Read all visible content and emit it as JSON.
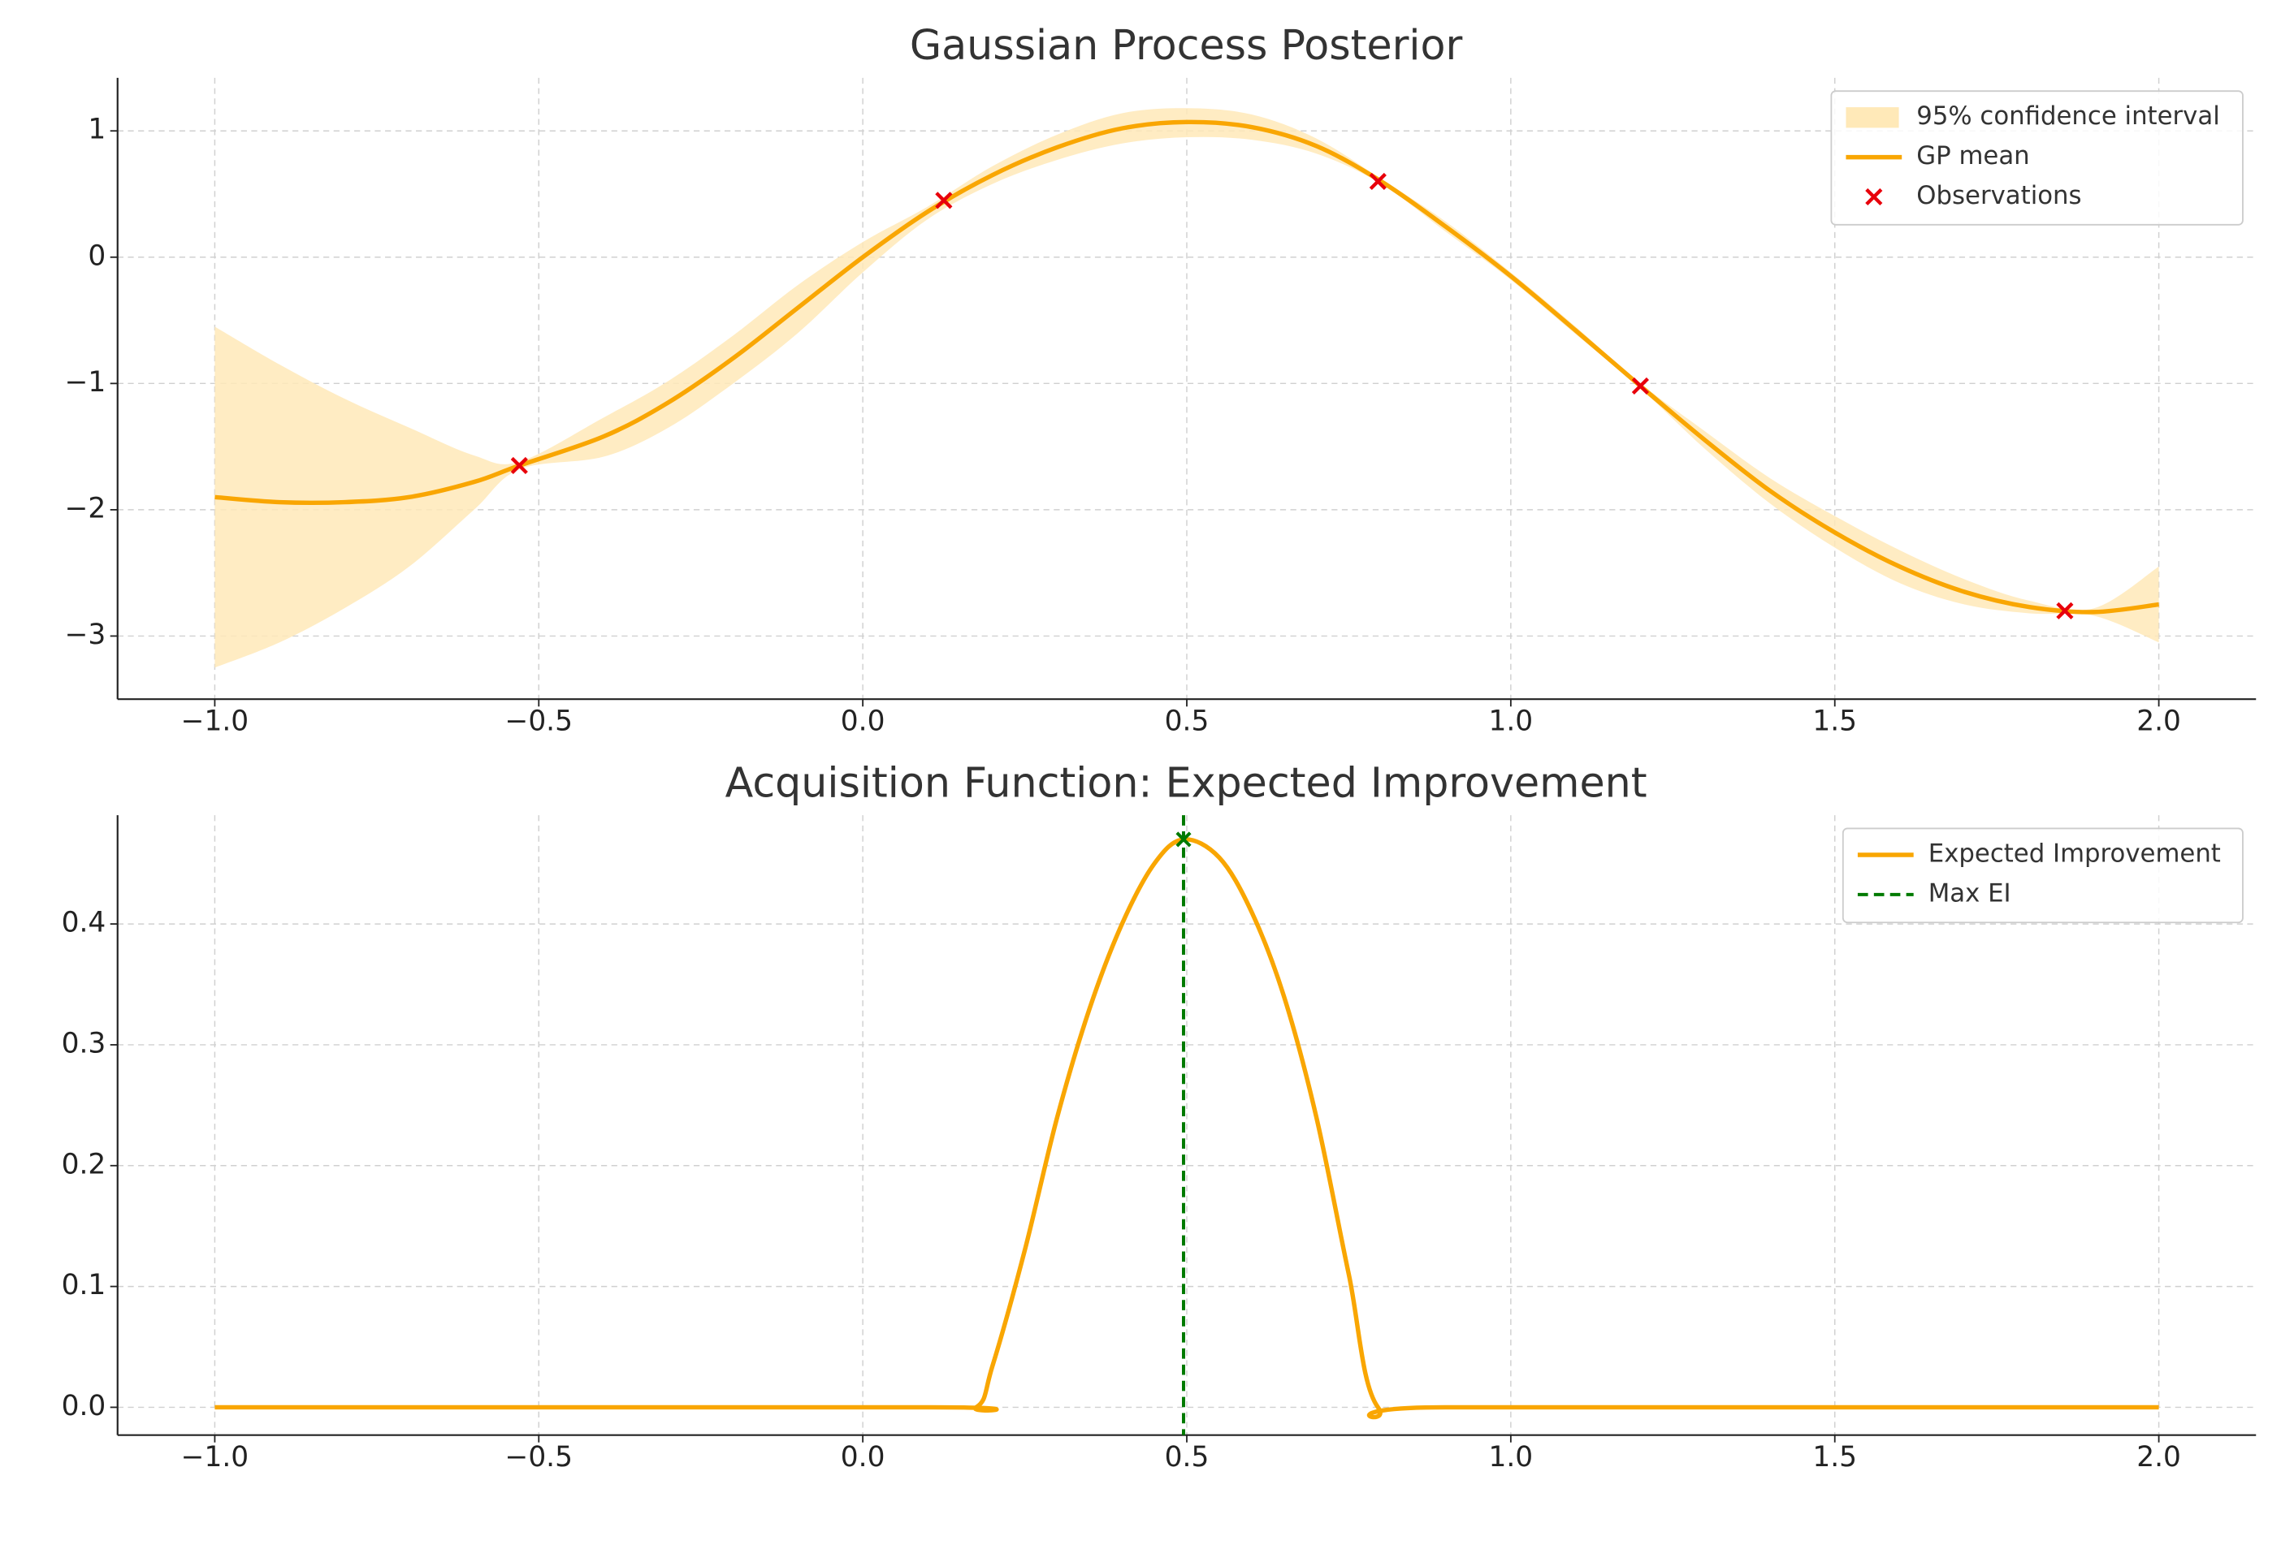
{
  "chart_data": [
    {
      "type": "line",
      "title": "Gaussian Process Posterior",
      "legend": "upper right",
      "grid": true,
      "xlim": [
        -1.15,
        2.15
      ],
      "ylim": [
        -3.5,
        1.42
      ],
      "xticks": [
        {
          "value": -1.0,
          "label": "−1.0"
        },
        {
          "value": -0.5,
          "label": "−0.5"
        },
        {
          "value": 0.0,
          "label": "0.0"
        },
        0.5,
        {
          "value": 1.0,
          "label": "1.0"
        },
        1.5,
        {
          "value": 2.0,
          "label": "2.0"
        }
      ],
      "yticks": [
        {
          "value": -3,
          "label": "−3"
        },
        {
          "value": -2,
          "label": "−2"
        },
        {
          "value": -1,
          "label": "−1"
        },
        0,
        1
      ],
      "x": [
        -1.0,
        -0.9,
        -0.8,
        -0.7,
        -0.6,
        -0.53,
        -0.4,
        -0.3,
        -0.2,
        -0.1,
        0.0,
        0.1,
        0.2,
        0.3,
        0.4,
        0.5,
        0.6,
        0.7,
        0.8,
        0.9,
        1.0,
        1.1,
        1.2,
        1.3,
        1.4,
        1.5,
        1.6,
        1.7,
        1.8,
        1.9,
        2.0
      ],
      "band": {
        "name": "95% confidence interval",
        "color": "#ffe9b8",
        "upper": [
          -0.55,
          -0.85,
          -1.12,
          -1.35,
          -1.57,
          -1.62,
          -1.27,
          -0.98,
          -0.62,
          -0.22,
          0.12,
          0.4,
          0.72,
          0.97,
          1.14,
          1.18,
          1.13,
          0.94,
          0.62,
          0.28,
          -0.12,
          -0.55,
          -1.0,
          -1.38,
          -1.75,
          -2.05,
          -2.32,
          -2.55,
          -2.72,
          -2.78,
          -2.45
        ],
        "lower": [
          -3.25,
          -3.05,
          -2.78,
          -2.45,
          -2.0,
          -1.68,
          -1.58,
          -1.35,
          -1.0,
          -0.6,
          -0.12,
          0.3,
          0.58,
          0.77,
          0.9,
          0.95,
          0.93,
          0.82,
          0.58,
          0.2,
          -0.18,
          -0.61,
          -1.04,
          -1.52,
          -1.95,
          -2.3,
          -2.58,
          -2.75,
          -2.82,
          -2.84,
          -3.05
        ]
      },
      "series": [
        {
          "name": "GP mean",
          "color": "#f9a602",
          "values": [
            -1.9,
            -1.94,
            -1.94,
            -1.9,
            -1.78,
            -1.65,
            -1.42,
            -1.15,
            -0.8,
            -0.4,
            0.0,
            0.36,
            0.65,
            0.87,
            1.02,
            1.07,
            1.03,
            0.88,
            0.6,
            0.24,
            -0.15,
            -0.58,
            -1.02,
            -1.45,
            -1.85,
            -2.18,
            -2.45,
            -2.65,
            -2.77,
            -2.81,
            -2.75
          ]
        }
      ],
      "observations": {
        "name": "Observations",
        "color": "#e8000b",
        "x": [
          -0.53,
          0.125,
          0.795,
          1.2,
          1.855
        ],
        "y": [
          -1.65,
          0.45,
          0.6,
          -1.02,
          -2.8
        ]
      }
    },
    {
      "type": "line",
      "title": "Acquisition Function: Expected Improvement",
      "legend": "upper right",
      "grid": true,
      "xlim": [
        -1.15,
        2.15
      ],
      "ylim": [
        -0.023,
        0.49
      ],
      "xticks": [
        {
          "value": -1.0,
          "label": "−1.0"
        },
        {
          "value": -0.5,
          "label": "−0.5"
        },
        {
          "value": 0.0,
          "label": "0.0"
        },
        0.5,
        {
          "value": 1.0,
          "label": "1.0"
        },
        1.5,
        {
          "value": 2.0,
          "label": "2.0"
        }
      ],
      "yticks": [
        {
          "value": 0.0,
          "label": "0.0"
        },
        0.1,
        0.2,
        0.3,
        0.4
      ],
      "x": [
        -1.0,
        0.1,
        0.175,
        0.2,
        0.25,
        0.3,
        0.35,
        0.4,
        0.45,
        0.495,
        0.55,
        0.6,
        0.65,
        0.7,
        0.75,
        0.795,
        0.9,
        2.0
      ],
      "series": [
        {
          "name": "Expected Improvement",
          "color": "#f9a602",
          "values": [
            0.0,
            0.0,
            0.0,
            0.034,
            0.13,
            0.24,
            0.33,
            0.4,
            0.45,
            0.47,
            0.455,
            0.41,
            0.34,
            0.24,
            0.11,
            0.0,
            0.0,
            0.0
          ]
        }
      ],
      "vline": {
        "name": "Max EI",
        "color": "#007a00",
        "x": 0.495,
        "y": 0.47
      }
    }
  ]
}
